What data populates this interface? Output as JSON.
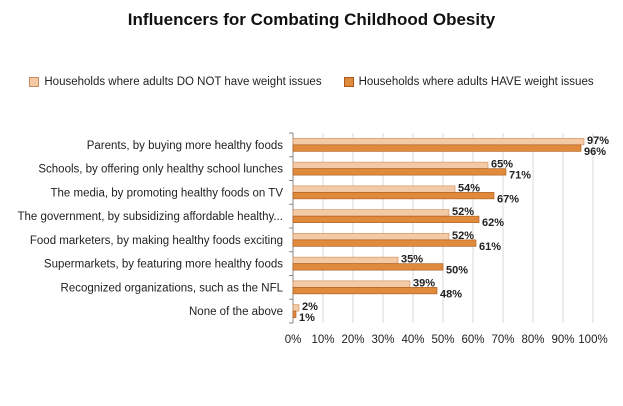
{
  "colors": {
    "series1": "#f4c9a6",
    "series1_edge": "#c98a5a",
    "series2": "#e08a3c",
    "series2_edge": "#a8581a",
    "grid": "#d9d9d9",
    "axis": "#888888"
  },
  "chart_data": {
    "type": "bar",
    "orientation": "horizontal",
    "title": "Influencers for Combating Childhood Obesity",
    "legend_position": "top",
    "categories": [
      "Parents, by buying more healthy foods",
      "Schools, by offering only healthy school lunches",
      "The media, by promoting healthy foods on TV",
      "The government, by subsidizing affordable healthy...",
      "Food marketers, by making healthy foods  exciting",
      "Supermarkets, by featuring more healthy foods",
      "Recognized organizations, such as the NFL",
      "None of the above"
    ],
    "series": [
      {
        "name": "Households where adults DO NOT have weight issues",
        "values": [
          97,
          65,
          54,
          52,
          52,
          35,
          39,
          2
        ],
        "labels": [
          "97%",
          "65%",
          "54%",
          "52%",
          "52%",
          "35%",
          "39%",
          "2%"
        ]
      },
      {
        "name": "Households where adults HAVE weight issues",
        "values": [
          96,
          71,
          67,
          62,
          61,
          50,
          48,
          1
        ],
        "labels": [
          "96%",
          "71%",
          "67%",
          "62%",
          "61%",
          "50%",
          "48%",
          "1%"
        ]
      }
    ],
    "xlim": [
      0,
      100
    ],
    "xticks": [
      "0%",
      "10%",
      "20%",
      "30%",
      "40%",
      "50%",
      "60%",
      "70%",
      "80%",
      "90%",
      "100%"
    ],
    "grid": true
  }
}
